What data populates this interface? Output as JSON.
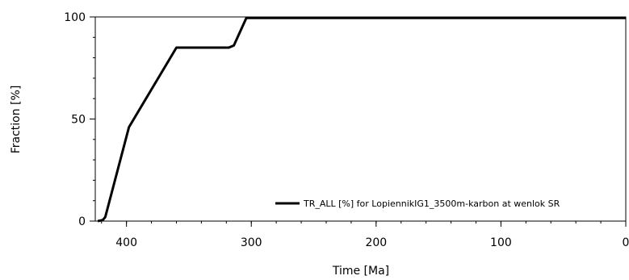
{
  "chart_data": {
    "type": "line",
    "xlabel": "Time [Ma]",
    "ylabel": "Fraction [%]",
    "xlim": [
      425,
      0
    ],
    "ylim": [
      0,
      100
    ],
    "x_ticks": [
      400,
      300,
      200,
      100,
      0
    ],
    "x_tick_labels": [
      "400",
      "300",
      "200",
      "100",
      "0"
    ],
    "y_ticks": [
      0,
      50,
      100
    ],
    "y_tick_labels": [
      "0",
      "50",
      "100"
    ],
    "x_minor_step": 20,
    "y_minor_step": 10,
    "grid": false,
    "legend_position": "bottom-right",
    "series": [
      {
        "name": "TR_ALL [%] for LopiennikIG1_3500m-karbon at wenlok SR",
        "color": "#000000",
        "x": [
          423,
          419,
          417,
          398,
          360,
          318,
          314,
          304,
          0
        ],
        "y": [
          0,
          0.5,
          2,
          46,
          85,
          85,
          86,
          99.5,
          99.5
        ]
      }
    ]
  }
}
